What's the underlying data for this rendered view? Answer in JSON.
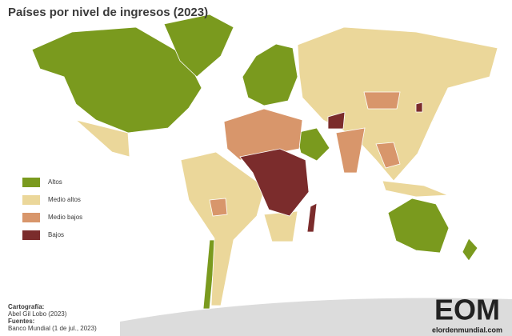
{
  "title": "Países por nivel de ingresos (2023)",
  "legend": {
    "items": [
      {
        "label": "Altos",
        "color": "#7a9a1e"
      },
      {
        "label": "Medio altos",
        "color": "#ebd79a"
      },
      {
        "label": "Medio bajos",
        "color": "#d8966b"
      },
      {
        "label": "Bajos",
        "color": "#7b2c2c"
      }
    ]
  },
  "credits": {
    "cartography_heading": "Cartografía:",
    "cartography": "Abel Gil Lobo (2023)",
    "sources_heading": "Fuentes:",
    "sources": "Banco Mundial (1 de jul., 2023)"
  },
  "logo": {
    "mark": "EOM",
    "site": "elordenmundial.com"
  }
}
